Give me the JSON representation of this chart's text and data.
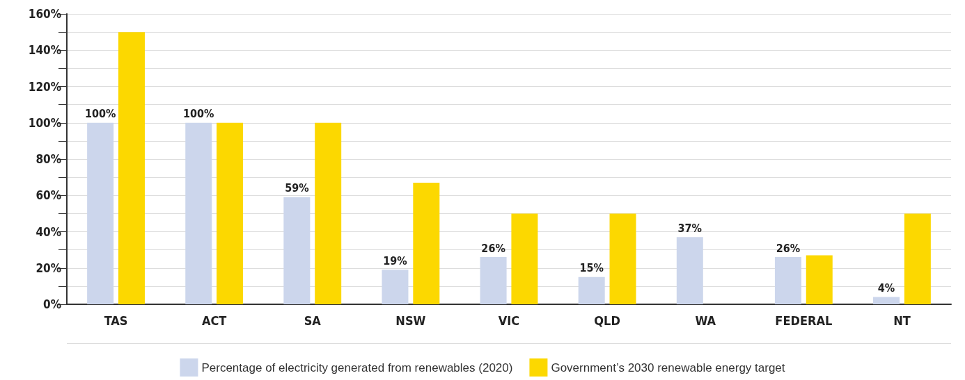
{
  "chart_data": {
    "type": "bar",
    "categories": [
      "TAS",
      "ACT",
      "SA",
      "NSW",
      "VIC",
      "QLD",
      "WA",
      "FEDERAL",
      "NT"
    ],
    "series": [
      {
        "name": "Percentage of electricity generated from renewables (2020)",
        "color": "#ccd6ec",
        "values": [
          100,
          100,
          59,
          19,
          26,
          15,
          37,
          26,
          4
        ],
        "value_labels": [
          "100%",
          "100%",
          "59%",
          "19%",
          "26%",
          "15%",
          "37%",
          "26%",
          "4%"
        ]
      },
      {
        "name": "Government’s 2030 renewable energy target",
        "color": "#fcd800",
        "values": [
          150,
          100,
          100,
          67,
          50,
          50,
          null,
          27,
          50
        ]
      }
    ],
    "ylim": [
      0,
      160
    ],
    "yticks": [
      {
        "value": 0,
        "label": "0%"
      },
      {
        "value": 10,
        "label": null
      },
      {
        "value": 20,
        "label": "20%"
      },
      {
        "value": 30,
        "label": null
      },
      {
        "value": 40,
        "label": "40%"
      },
      {
        "value": 50,
        "label": null
      },
      {
        "value": 60,
        "label": "60%"
      },
      {
        "value": 70,
        "label": null
      },
      {
        "value": 80,
        "label": "80%"
      },
      {
        "value": 90,
        "label": null
      },
      {
        "value": 100,
        "label": "100%"
      },
      {
        "value": 110,
        "label": null
      },
      {
        "value": 120,
        "label": "120%"
      },
      {
        "value": 130,
        "label": null
      },
      {
        "value": 140,
        "label": "140%"
      },
      {
        "value": 150,
        "label": null
      },
      {
        "value": 160,
        "label": "160%"
      }
    ],
    "grid": "y",
    "legend": "bottom"
  }
}
